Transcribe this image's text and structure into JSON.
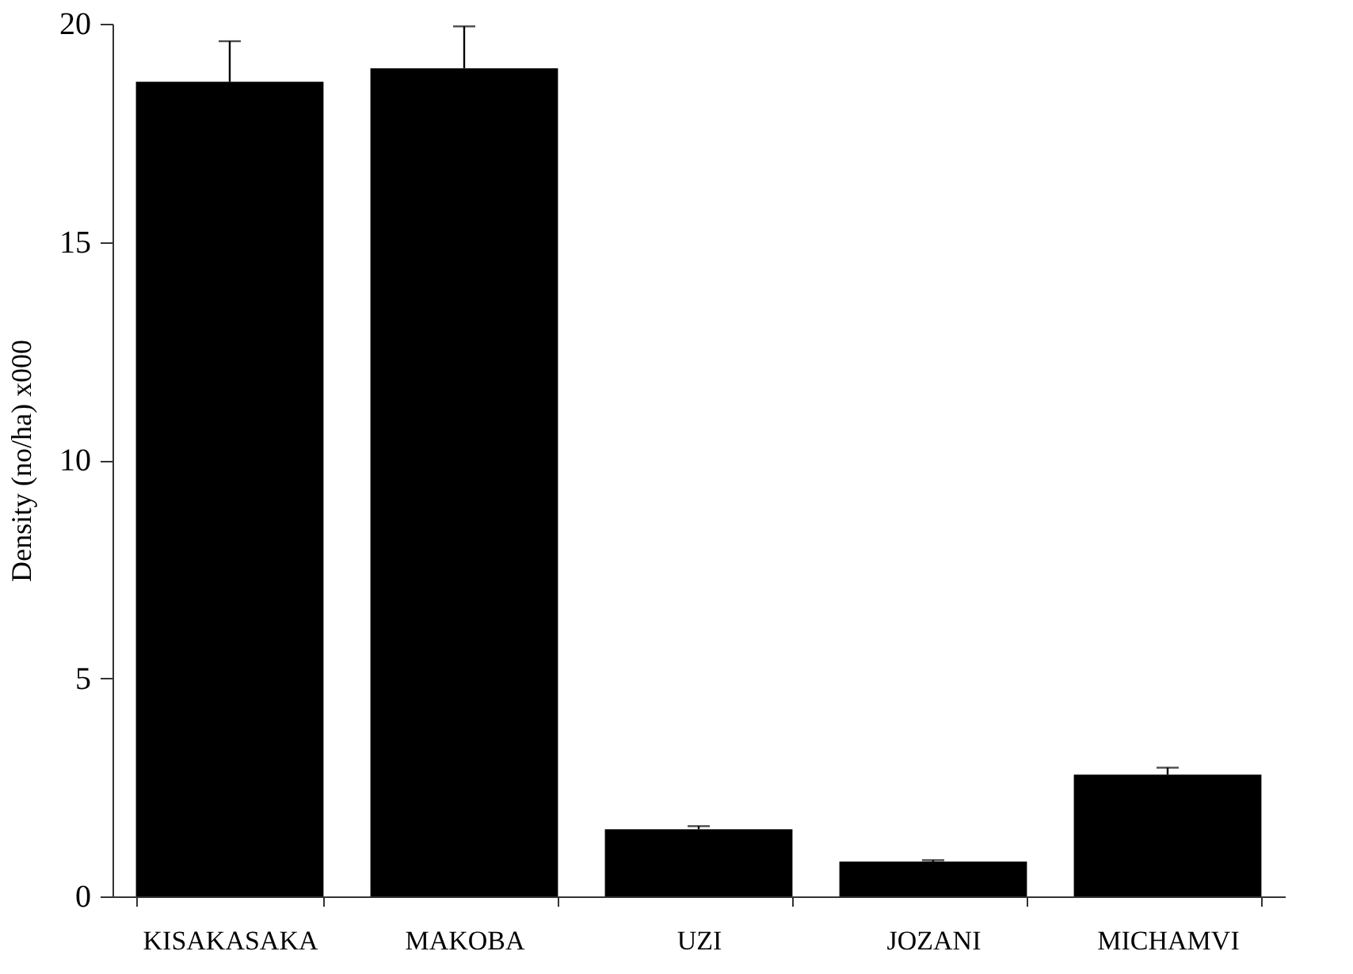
{
  "chart_data": {
    "type": "bar",
    "ylabel": "Density (no/ha) x000",
    "categories": [
      "KISAKASAKA",
      "MAKOBA",
      "UZI",
      "JOZANI",
      "MICHAMVI"
    ],
    "values": [
      18.67,
      18.98,
      1.54,
      0.8,
      2.79
    ],
    "errors": [
      [
        18.67,
        19.6
      ],
      [
        18.98,
        19.94
      ],
      [
        1.54,
        1.61
      ],
      [
        0.8,
        0.83
      ],
      [
        2.79,
        2.95
      ]
    ],
    "color": "#000000",
    "ylim": [
      0,
      20
    ],
    "yticks": [
      0,
      5,
      10,
      15,
      20
    ],
    "grid": false
  }
}
